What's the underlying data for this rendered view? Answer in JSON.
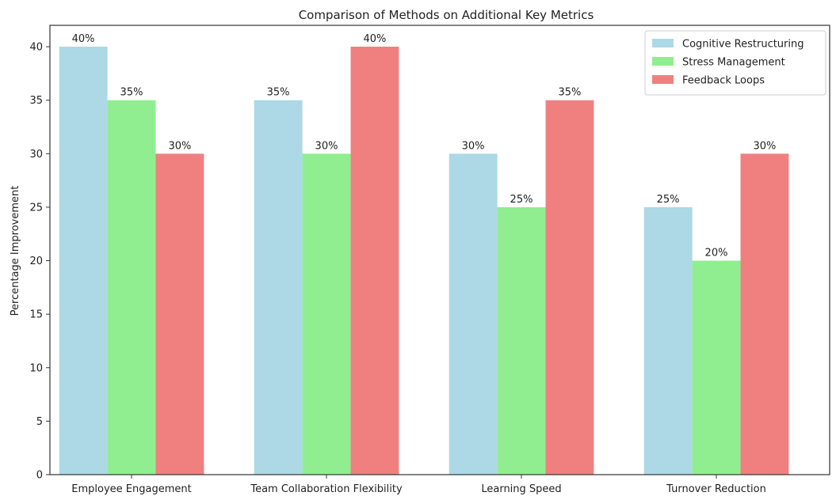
{
  "chart_data": {
    "type": "bar",
    "title": "Comparison of Methods on Additional Key Metrics",
    "xlabel": "",
    "ylabel": "Percentage Improvement",
    "categories": [
      "Employee Engagement",
      "Team Collaboration Flexibility",
      "Learning Speed",
      "Turnover Reduction"
    ],
    "series": [
      {
        "name": "Cognitive Restructuring",
        "values": [
          40,
          35,
          30,
          25
        ],
        "color": "#add8e6",
        "labels": [
          "40%",
          "35%",
          "30%",
          "25%"
        ]
      },
      {
        "name": "Stress Management",
        "values": [
          35,
          30,
          25,
          20
        ],
        "color": "#90ee90",
        "labels": [
          "35%",
          "30%",
          "25%",
          "20%"
        ]
      },
      {
        "name": "Feedback Loops",
        "values": [
          30,
          40,
          35,
          30
        ],
        "color": "#f08080",
        "labels": [
          "30%",
          "40%",
          "35%",
          "30%"
        ]
      }
    ],
    "ylim": [
      0,
      42
    ],
    "yticks": [
      0,
      5,
      10,
      15,
      20,
      25,
      30,
      35,
      40
    ],
    "grid": false,
    "legend": "top-right"
  }
}
